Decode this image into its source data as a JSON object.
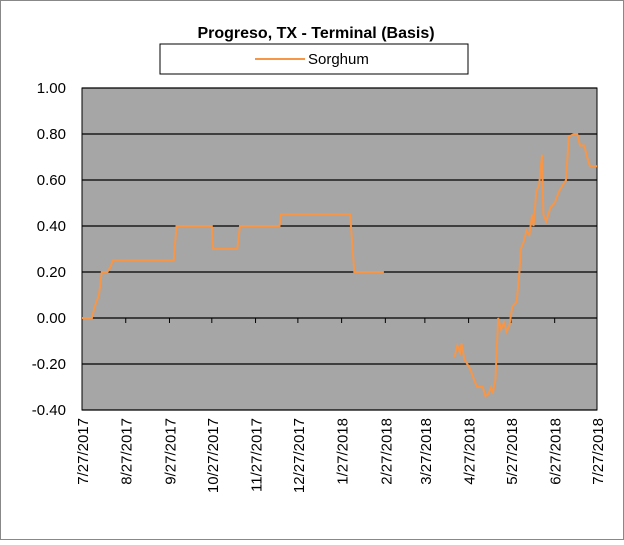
{
  "chart_data": {
    "type": "line",
    "title": "Progreso, TX - Terminal (Basis)",
    "series": [
      {
        "name": "Sorghum",
        "color": "#f79646",
        "x": [
          "7/27/2017",
          "8/3/2017",
          "8/5/2017",
          "8/8/2017",
          "8/10/2017",
          "8/14/2017",
          "8/16/2017",
          "8/18/2017",
          "9/30/2017",
          "10/2/2017",
          "10/27/2017",
          "10/28/2017",
          "11/14/2017",
          "11/16/2017",
          "12/14/2017",
          "12/15/2017",
          "2/2/2018",
          "2/5/2018",
          "2/26/2018",
          "3/27/2018",
          "4/17/2018",
          "4/19/2018",
          "4/21/2018",
          "4/22/2018",
          "4/24/2018",
          "4/28/2018",
          "5/1/2018",
          "5/3/2018",
          "5/7/2018",
          "5/9/2018",
          "5/11/2018",
          "5/13/2018",
          "5/14/2018",
          "5/16/2018",
          "5/18/2018",
          "5/20/2018",
          "5/22/2018",
          "5/24/2018",
          "5/26/2018",
          "5/28/2018",
          "5/31/2018",
          "6/2/2018",
          "6/3/2018",
          "6/5/2018",
          "6/7/2018",
          "6/9/2018",
          "6/11/2018",
          "6/12/2018",
          "6/14/2018",
          "6/16/2018",
          "6/18/2018",
          "6/19/2018",
          "6/21/2018",
          "6/24/2018",
          "6/27/2018",
          "6/30/2018",
          "7/3/2018",
          "7/5/2018",
          "7/7/2018",
          "7/11/2018",
          "7/13/2018",
          "7/15/2018",
          "7/18/2018",
          "7/20/2018",
          "7/22/2018",
          "7/27/2018"
        ],
        "values": [
          0,
          0,
          0.05,
          0.1,
          0.2,
          0.2,
          0.22,
          0.25,
          0.25,
          0.4,
          0.4,
          0.3,
          0.3,
          0.4,
          0.4,
          0.45,
          0.45,
          0.2,
          0.2,
          null,
          -0.17,
          -0.12,
          -0.15,
          -0.11,
          -0.18,
          -0.22,
          -0.27,
          -0.3,
          -0.3,
          -0.34,
          -0.33,
          -0.3,
          -0.33,
          -0.27,
          0,
          -0.05,
          -0.02,
          -0.06,
          -0.03,
          0.05,
          0.07,
          0.2,
          0.3,
          0.33,
          0.38,
          0.36,
          0.45,
          0.4,
          0.55,
          0.58,
          0.71,
          0.45,
          0.42,
          0.48,
          0.5,
          0.55,
          0.58,
          0.6,
          0.79,
          0.8,
          0.8,
          0.75,
          0.75,
          0.7,
          0.66,
          0.66
        ]
      }
    ],
    "xlim": [
      "7/27/2017",
      "7/27/2018"
    ],
    "xticks": [
      "7/27/2017",
      "8/27/2017",
      "9/27/2017",
      "10/27/2017",
      "11/27/2017",
      "12/27/2017",
      "1/27/2018",
      "2/27/2018",
      "3/27/2018",
      "4/27/2018",
      "5/27/2018",
      "6/27/2018",
      "7/27/2018"
    ],
    "ylim": [
      -0.4,
      1
    ],
    "yticks": [
      {
        "value": -0.4,
        "label": "-0.40"
      },
      {
        "value": -0.2,
        "label": "-0.20"
      },
      {
        "value": 0,
        "label": "0.00"
      },
      {
        "value": 0.2,
        "label": "0.20"
      },
      {
        "value": 0.4,
        "label": "0.40"
      },
      {
        "value": 0.6,
        "label": "0.60"
      },
      {
        "value": 0.8,
        "label": "0.80"
      },
      {
        "value": 1,
        "label": "1.00"
      }
    ],
    "grid": true,
    "plot_background": "#a6a6a6"
  }
}
